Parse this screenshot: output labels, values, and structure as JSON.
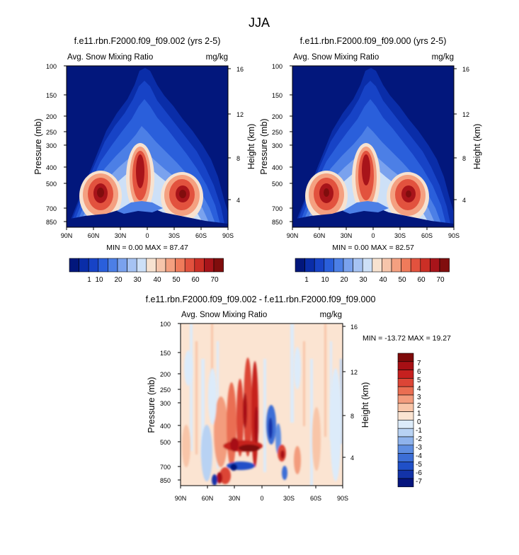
{
  "figure_title": "JJA",
  "colors": {
    "warm_palette": [
      "#f7e2d0",
      "#f6c5ab",
      "#f4a080",
      "#ef7b5b",
      "#e2523e",
      "#cb2f26",
      "#a8141a",
      "#800d0d"
    ],
    "cool_palette": [
      "#02177c",
      "#0a2da8",
      "#1743c6",
      "#2a5fdb",
      "#4c7fe6",
      "#7aa2ee",
      "#a6c3f3",
      "#cde0f7"
    ],
    "diff_pos": [
      "#fbe4d2",
      "#f8c5a8",
      "#f39c7d",
      "#ea6e52",
      "#dc4536",
      "#c6201f",
      "#a70f14",
      "#7e0a0a"
    ],
    "diff_neg": [
      "#dcebfa",
      "#b8d2f3",
      "#8fb3ec",
      "#5f8ee2",
      "#3c6ed6",
      "#2050c8",
      "#1333a8",
      "#06157e"
    ]
  },
  "chart_data": [
    {
      "type": "heatmap",
      "panel": "left",
      "title": "f.e11.rbn.F2000.f09_f09.002 (yrs 2-5)",
      "field_label": "Avg. Snow Mixing Ratio",
      "units": "mg/kg",
      "ylabel": "Pressure (mb)",
      "ylabel_right": "Height (km)",
      "x_ticks": [
        "90N",
        "60N",
        "30N",
        "0",
        "30S",
        "60S",
        "90S"
      ],
      "y_ticks": [
        "100",
        "150",
        "200",
        "250",
        "300",
        "400",
        "500",
        "700",
        "850"
      ],
      "y_right_ticks": [
        "16",
        "12",
        "8",
        "4"
      ],
      "stats": "MIN =  0.00  MAX =  87.47",
      "min": 0.0,
      "max": 87.47,
      "colorbar_labels": [
        "1",
        "10",
        "20",
        "30",
        "40",
        "50",
        "60",
        "70"
      ]
    },
    {
      "type": "heatmap",
      "panel": "right",
      "title": "f.e11.rbn.F2000.f09_f09.000 (yrs 2-5)",
      "field_label": "Avg. Snow Mixing Ratio",
      "units": "mg/kg",
      "ylabel": "Pressure (mb)",
      "ylabel_right": "Height (km)",
      "x_ticks": [
        "90N",
        "60N",
        "30N",
        "0",
        "30S",
        "60S",
        "90S"
      ],
      "y_ticks": [
        "100",
        "150",
        "200",
        "250",
        "300",
        "400",
        "500",
        "700",
        "850"
      ],
      "y_right_ticks": [
        "16",
        "12",
        "8",
        "4"
      ],
      "stats": "MIN =  0.00  MAX =  82.57",
      "min": 0.0,
      "max": 82.57,
      "colorbar_labels": [
        "1",
        "10",
        "20",
        "30",
        "40",
        "50",
        "60",
        "70"
      ]
    },
    {
      "type": "heatmap",
      "panel": "difference",
      "title": "f.e11.rbn.F2000.f09_f09.002 - f.e11.rbn.F2000.f09_f09.000",
      "field_label": "Avg. Snow Mixing Ratio",
      "units": "mg/kg",
      "ylabel": "Pressure (mb)",
      "ylabel_right": "Height (km)",
      "x_ticks": [
        "90N",
        "60N",
        "30N",
        "0",
        "30S",
        "60S",
        "90S"
      ],
      "y_ticks": [
        "100",
        "150",
        "200",
        "250",
        "300",
        "400",
        "500",
        "700",
        "850"
      ],
      "y_right_ticks": [
        "16",
        "12",
        "8",
        "4"
      ],
      "stats": "MIN = -13.72  MAX =  19.27",
      "min": -13.72,
      "max": 19.27,
      "colorbar_labels": [
        "7",
        "6",
        "5",
        "4",
        "3",
        "2",
        "1",
        "0",
        "-1",
        "-2",
        "-3",
        "-4",
        "-5",
        "-6",
        "-7"
      ]
    }
  ]
}
